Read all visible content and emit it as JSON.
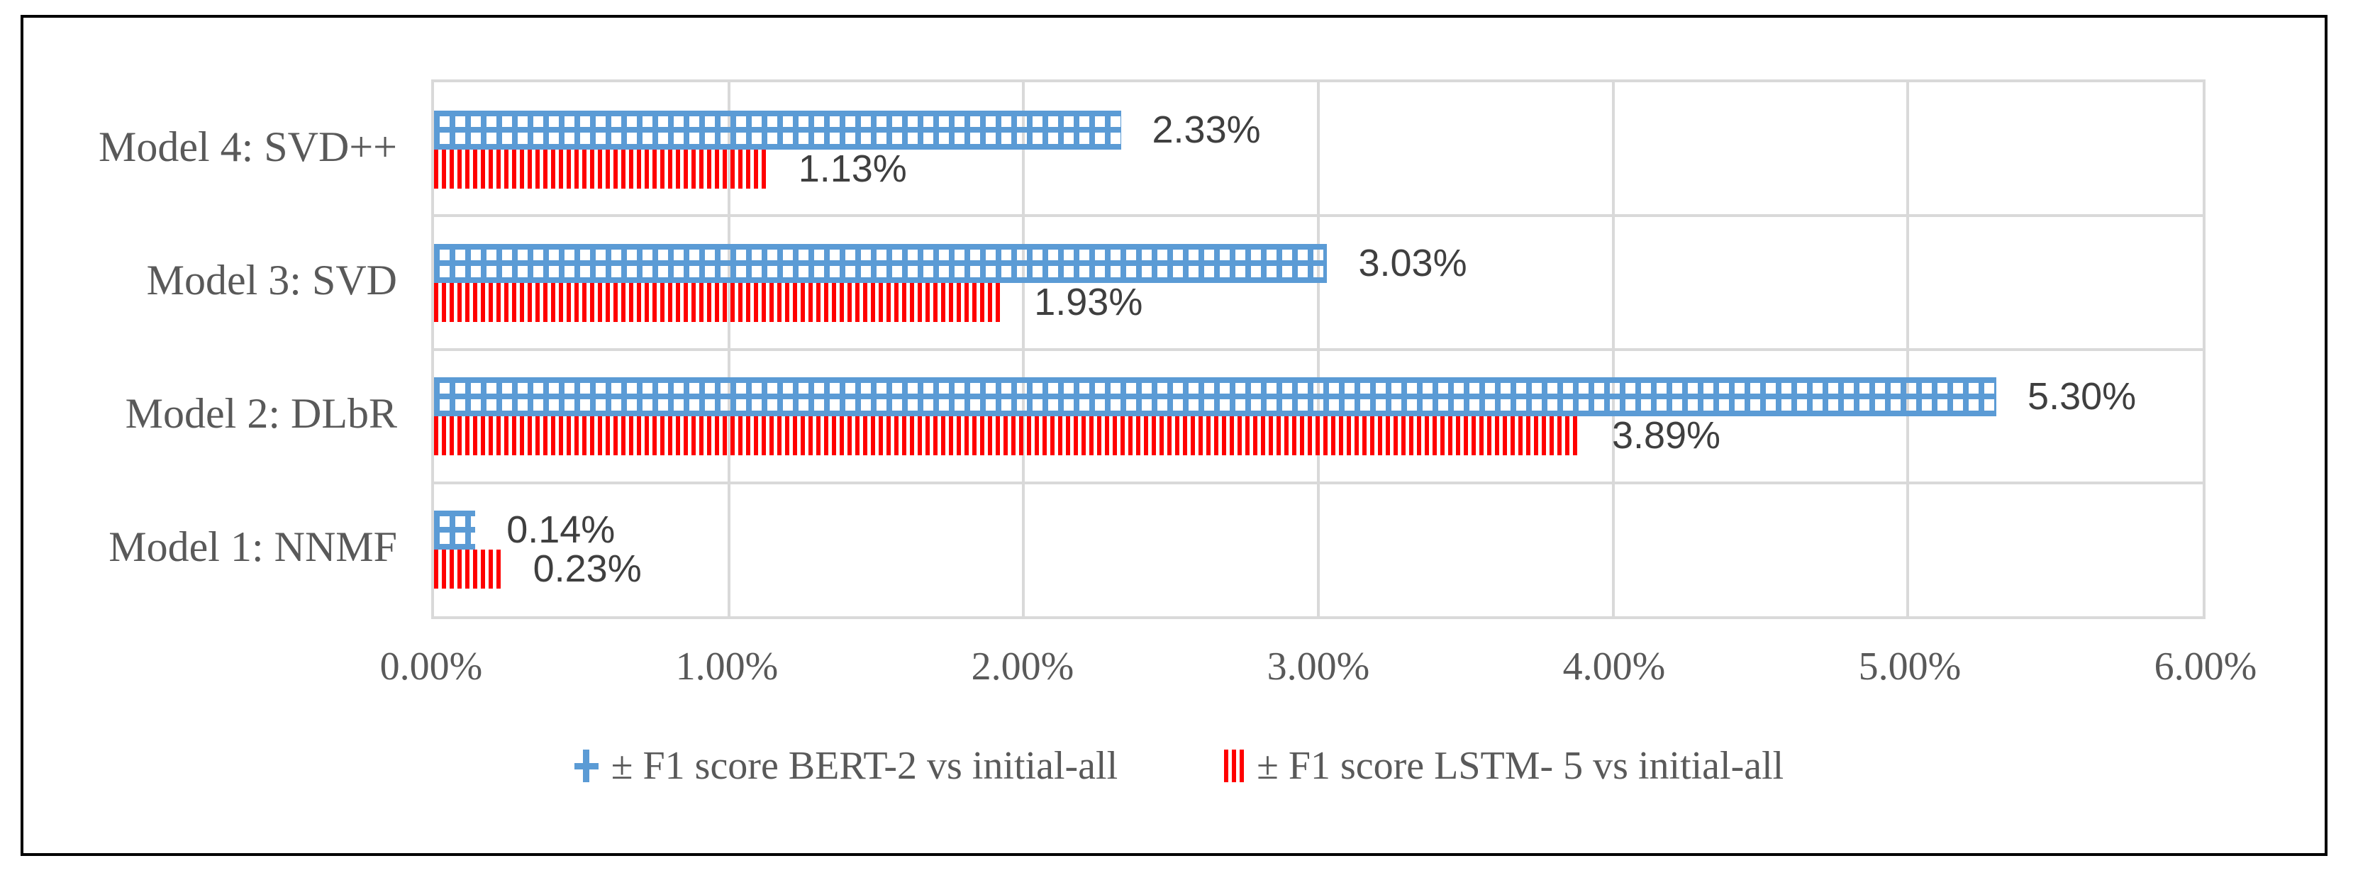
{
  "chart_data": {
    "type": "bar",
    "orientation": "horizontal",
    "title": "",
    "xlabel": "",
    "ylabel": "",
    "categories_top_to_bottom": [
      "Model 4: SVD++",
      "Model 3: SVD",
      "Model 2: DLbR",
      "Model 1: NNMF"
    ],
    "series": [
      {
        "name": "± F1 score BERT-2 vs initial-all",
        "color": "#5B9BD5",
        "pattern": "grid",
        "values": [
          2.33,
          3.03,
          5.3,
          0.14
        ],
        "value_labels": [
          "2.33%",
          "3.03%",
          "5.30%",
          "0.14%"
        ]
      },
      {
        "name": "± F1 score LSTM- 5 vs initial-all",
        "color": "#FF0000",
        "pattern": "vertical-stripes",
        "values": [
          1.13,
          1.93,
          3.89,
          0.23
        ],
        "value_labels": [
          "1.13%",
          "1.93%",
          "3.89%",
          "0.23%"
        ]
      }
    ],
    "x_axis": {
      "min": 0,
      "max": 6,
      "tick_step": 1,
      "tick_labels": [
        "0.00%",
        "1.00%",
        "2.00%",
        "3.00%",
        "4.00%",
        "5.00%",
        "6.00%"
      ]
    },
    "grid": true,
    "legend_position": "bottom"
  },
  "colors": {
    "series1_blue": "#5B9BD5",
    "series2_red": "#FF0000",
    "gridline": "#D9D9D9",
    "axis_text": "#595959",
    "data_label_text": "#3F3F3F",
    "frame_border": "#000000",
    "background": "#FFFFFF"
  }
}
